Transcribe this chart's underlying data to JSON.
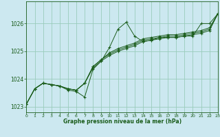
{
  "title": "Graphe pression niveau de la mer (hPa)",
  "bg_color": "#cce8f0",
  "grid_color": "#99ccbb",
  "line_color": "#1a5c1a",
  "xlim": [
    0,
    23
  ],
  "ylim": [
    1022.8,
    1026.8
  ],
  "yticks": [
    1023,
    1024,
    1025,
    1026
  ],
  "xticks": [
    0,
    1,
    2,
    3,
    4,
    5,
    6,
    7,
    8,
    9,
    10,
    11,
    12,
    13,
    14,
    15,
    16,
    17,
    18,
    19,
    20,
    21,
    22,
    23
  ],
  "series0": [
    1023.1,
    1023.65,
    1023.85,
    1023.8,
    1023.75,
    1023.6,
    1023.55,
    1023.35,
    1024.35,
    1024.65,
    1025.15,
    1025.8,
    1026.05,
    1025.55,
    1025.35,
    1025.4,
    1025.5,
    1025.5,
    1025.5,
    1025.55,
    1025.55,
    1026.0,
    1026.0,
    1026.35
  ],
  "series1": [
    1023.1,
    1023.65,
    1023.85,
    1023.8,
    1023.75,
    1023.65,
    1023.6,
    1023.85,
    1024.4,
    1024.65,
    1024.85,
    1025.0,
    1025.1,
    1025.2,
    1025.35,
    1025.4,
    1025.45,
    1025.5,
    1025.5,
    1025.55,
    1025.6,
    1025.65,
    1025.75,
    1026.35
  ],
  "series2": [
    1023.1,
    1023.65,
    1023.85,
    1023.8,
    1023.75,
    1023.65,
    1023.6,
    1023.85,
    1024.45,
    1024.7,
    1024.9,
    1025.05,
    1025.15,
    1025.25,
    1025.4,
    1025.45,
    1025.5,
    1025.55,
    1025.55,
    1025.6,
    1025.65,
    1025.7,
    1025.8,
    1026.35
  ],
  "series3": [
    1023.1,
    1023.65,
    1023.85,
    1023.8,
    1023.75,
    1023.65,
    1023.6,
    1023.85,
    1024.45,
    1024.7,
    1024.95,
    1025.1,
    1025.2,
    1025.3,
    1025.45,
    1025.5,
    1025.55,
    1025.6,
    1025.6,
    1025.65,
    1025.7,
    1025.75,
    1025.85,
    1026.35
  ]
}
